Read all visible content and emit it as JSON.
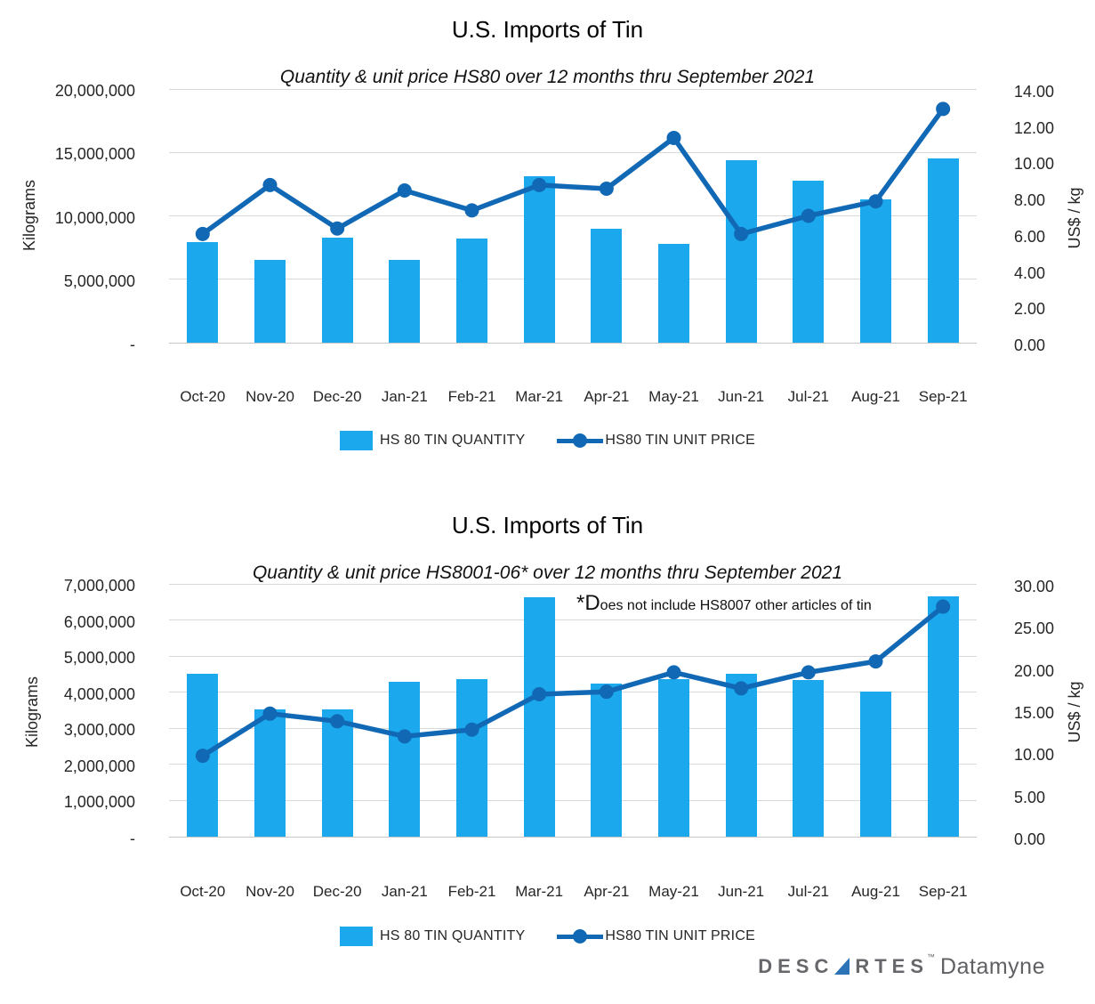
{
  "page": {
    "background": "#ffffff"
  },
  "colors": {
    "bar": "#1BA8EC",
    "line": "#1168B5",
    "gridline": "#D9D9D9",
    "axis_text": "#262626"
  },
  "chart_data": [
    {
      "type": "combo-bar-line",
      "title": "U.S. Imports of Tin",
      "subtitle": "Quantity & unit price HS80 over 12 months thru September 2021",
      "categories": [
        "Oct-20",
        "Nov-20",
        "Dec-20",
        "Jan-21",
        "Feb-21",
        "Mar-21",
        "Apr-21",
        "May-21",
        "Jun-21",
        "Jul-21",
        "Aug-21",
        "Sep-21"
      ],
      "series": [
        {
          "name": "HS 80 TIN QUANTITY",
          "type": "bar",
          "axis": "left",
          "color": "#1BA8EC",
          "values": [
            7900000,
            6500000,
            8250000,
            6500000,
            8200000,
            13100000,
            8950000,
            7800000,
            14400000,
            12800000,
            11300000,
            14500000
          ]
        },
        {
          "name": "HS80 TIN UNIT PRICE",
          "type": "line",
          "axis": "right",
          "color": "#1168B5",
          "values": [
            6.0,
            8.7,
            6.3,
            8.4,
            7.3,
            8.7,
            8.5,
            11.3,
            6.0,
            7.0,
            7.8,
            12.9
          ]
        }
      ],
      "left_axis": {
        "label": "Kilograms",
        "min": 0,
        "max": 20000000,
        "tick_labels": [
          "20,000,000",
          "15,000,000",
          "10,000,000",
          "5,000,000",
          "-"
        ]
      },
      "right_axis": {
        "label": "US$ / kg",
        "min": 0,
        "max": 14,
        "tick_labels": [
          "14.00",
          "12.00",
          "10.00",
          "8.00",
          "6.00",
          "4.00",
          "2.00",
          "0.00"
        ]
      },
      "grid": true,
      "legend_position": "bottom"
    },
    {
      "type": "combo-bar-line",
      "title": "U.S. Imports of Tin",
      "subtitle": "Quantity & unit price HS8001-06* over 12 months thru September 2021",
      "annotation": "*Does not include HS8007 other articles of tin",
      "categories": [
        "Oct-20",
        "Nov-20",
        "Dec-20",
        "Jan-21",
        "Feb-21",
        "Mar-21",
        "Apr-21",
        "May-21",
        "Jun-21",
        "Jul-21",
        "Aug-21",
        "Sep-21"
      ],
      "series": [
        {
          "name": "HS 80 TIN QUANTITY",
          "type": "bar",
          "axis": "left",
          "color": "#1BA8EC",
          "values": [
            4500000,
            3520000,
            3530000,
            4290000,
            4360000,
            6630000,
            4240000,
            4360000,
            4500000,
            4340000,
            4020000,
            6660000
          ]
        },
        {
          "name": "HS80 TIN UNIT PRICE",
          "type": "line",
          "axis": "right",
          "color": "#1168B5",
          "values": [
            9.6,
            14.6,
            13.7,
            11.9,
            12.7,
            16.9,
            17.2,
            19.5,
            17.6,
            19.5,
            20.8,
            27.3
          ]
        }
      ],
      "left_axis": {
        "label": "Kilograms",
        "min": 0,
        "max": 7000000,
        "tick_labels": [
          "7,000,000",
          "6,000,000",
          "5,000,000",
          "4,000,000",
          "3,000,000",
          "2,000,000",
          "1,000,000",
          "-"
        ]
      },
      "right_axis": {
        "label": "US$ / kg",
        "min": 0,
        "max": 30,
        "tick_labels": [
          "30.00",
          "25.00",
          "20.00",
          "15.00",
          "10.00",
          "5.00",
          "0.00"
        ]
      },
      "grid": true,
      "legend_position": "bottom"
    }
  ],
  "logo": {
    "brand_prefix": "DESC",
    "brand_suffix": "RTES",
    "trademark": "™",
    "product": "Datamyne",
    "triangle_color": "#2C73B8",
    "text_color": "#66676A"
  }
}
